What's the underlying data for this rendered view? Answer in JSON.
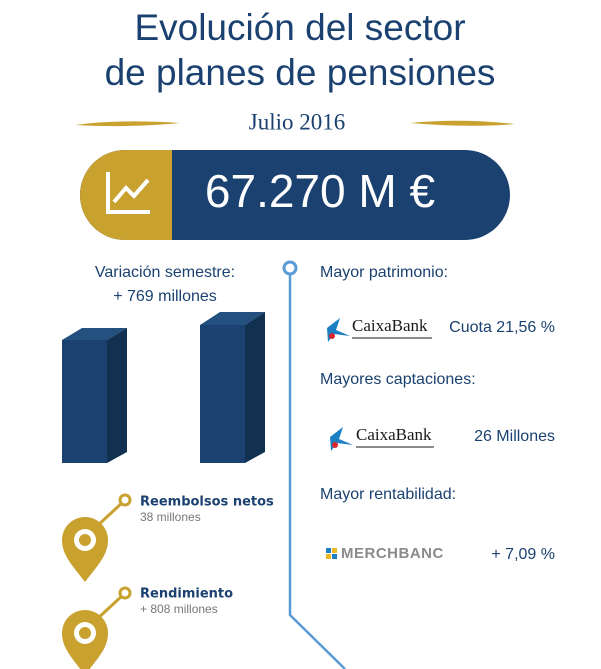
{
  "header": {
    "title_lines": [
      "Evolución del sector",
      "de planes de pensiones"
    ],
    "date": "Julio 2016"
  },
  "total": "67.270 M €",
  "left": {
    "variation_label": "Variación semestre:",
    "variation_value": "+ 769 millones",
    "items": [
      {
        "title": "Reembolsos netos",
        "detail": "38 millones"
      },
      {
        "title": "Rendimiento",
        "detail": "+ 808 millones"
      }
    ]
  },
  "right": [
    {
      "heading": "Mayor patrimonio:",
      "brand": "CaixaBank",
      "value": "Cuota 21,56 %"
    },
    {
      "heading": "Mayores captaciones:",
      "brand": "CaixaBank",
      "value": "26 Millones"
    },
    {
      "heading": "Mayor rentabilidad:",
      "brand": "MERCHBANC",
      "value": "+ 7,09 %"
    }
  ]
}
